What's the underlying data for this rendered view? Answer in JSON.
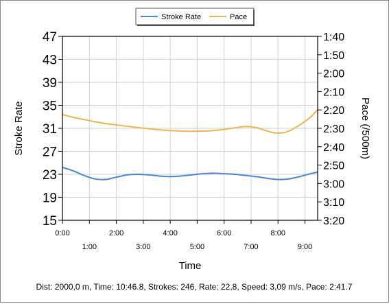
{
  "chart_data": {
    "type": "line",
    "legend": {
      "placement": "top-center",
      "entries": [
        {
          "name": "Stroke Rate",
          "color": "#4a86d6"
        },
        {
          "name": "Pace",
          "color": "#f2b250"
        }
      ]
    },
    "xlabel": "Time",
    "ylabel_left": "Stroke Rate",
    "ylabel_right": "Pace (/500m)",
    "x_ticks_upper": [
      "0:00",
      "2:00",
      "4:00",
      "6:00",
      "8:00"
    ],
    "x_ticks_lower": [
      "1:00",
      "3:00",
      "5:00",
      "7:00",
      "9:00"
    ],
    "xlim": [
      0,
      9.47
    ],
    "y_left_ticks": [
      "47",
      "43",
      "39",
      "35",
      "31",
      "27",
      "23",
      "19",
      "15"
    ],
    "y_left_lim": [
      15,
      47
    ],
    "y_right_ticks": [
      "1:40",
      "1:50",
      "2:00",
      "2:10",
      "2:20",
      "2:30",
      "2:40",
      "2:50",
      "3:00",
      "3:10",
      "3:20"
    ],
    "y_right_lim": [
      100,
      200
    ],
    "grid": true,
    "series": [
      {
        "name": "Stroke Rate",
        "color": "#4a86d6",
        "axis": "left",
        "x": [
          0,
          0.4,
          0.8,
          1.2,
          1.6,
          2.0,
          2.4,
          2.8,
          3.2,
          3.6,
          4.0,
          4.4,
          4.8,
          5.2,
          5.6,
          6.0,
          6.4,
          6.8,
          7.2,
          7.6,
          8.0,
          8.4,
          8.8,
          9.2,
          9.47
        ],
        "values": [
          24.2,
          23.6,
          22.8,
          22.2,
          22.1,
          22.5,
          22.9,
          23.0,
          22.9,
          22.7,
          22.6,
          22.7,
          22.9,
          23.1,
          23.2,
          23.1,
          23.0,
          22.8,
          22.6,
          22.3,
          22.1,
          22.2,
          22.6,
          23.1,
          23.4
        ]
      },
      {
        "name": "Pace",
        "color": "#f2b250",
        "axis": "right",
        "x": [
          0,
          0.4,
          0.8,
          1.2,
          1.6,
          2.0,
          2.4,
          2.8,
          3.2,
          3.6,
          4.0,
          4.4,
          4.8,
          5.2,
          5.6,
          6.0,
          6.4,
          6.8,
          7.2,
          7.6,
          8.0,
          8.4,
          8.8,
          9.2,
          9.47
        ],
        "values": [
          142.5,
          144.0,
          145.2,
          146.4,
          147.4,
          148.2,
          148.9,
          149.6,
          150.2,
          150.8,
          151.2,
          151.5,
          151.6,
          151.5,
          151.2,
          150.6,
          149.7,
          149.0,
          149.6,
          151.5,
          152.6,
          151.5,
          148.2,
          144.0,
          139.8
        ]
      }
    ]
  },
  "footer": {
    "summary": "Dist: 2000,0 m, Time: 10:46.8, Strokes: 246, Rate: 22,8, Speed: 3,09 m/s, Pace: 2:41.7"
  }
}
